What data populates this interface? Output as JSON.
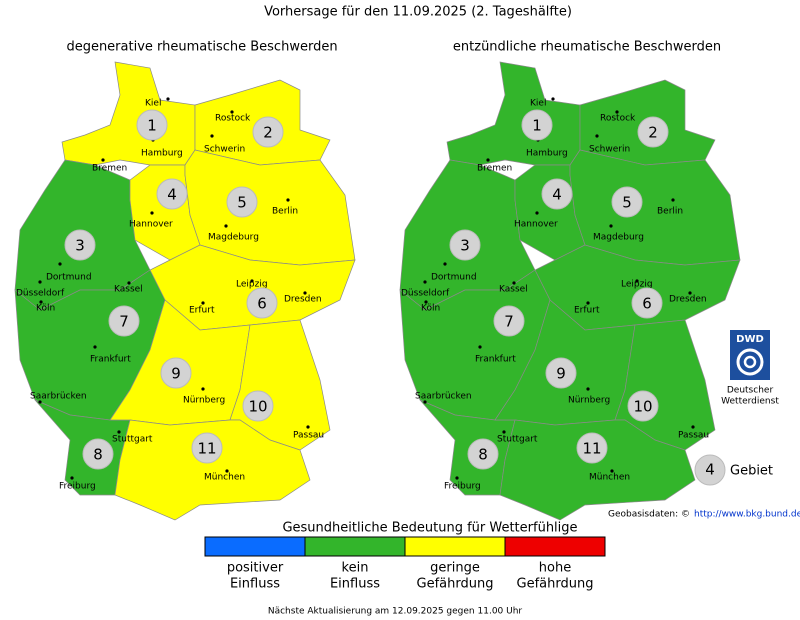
{
  "title": "Vorhersage für den 11.09.2025 (2. Tageshälfte)",
  "maps": [
    {
      "title": "degenerative rheumatische Beschwerden",
      "regions": [
        {
          "label": "1",
          "color": "#ffff00"
        },
        {
          "label": "2",
          "color": "#ffff00"
        },
        {
          "label": "3",
          "color": "#33b52b"
        },
        {
          "label": "4",
          "color": "#ffff00"
        },
        {
          "label": "5",
          "color": "#ffff00"
        },
        {
          "label": "6",
          "color": "#ffff00"
        },
        {
          "label": "7",
          "color": "#33b52b"
        },
        {
          "label": "8",
          "color": "#33b52b"
        },
        {
          "label": "9",
          "color": "#ffff00"
        },
        {
          "label": "10",
          "color": "#ffff00"
        },
        {
          "label": "11",
          "color": "#ffff00"
        }
      ]
    },
    {
      "title": "entzündliche rheumatische Beschwerden",
      "regions": [
        {
          "label": "1",
          "color": "#33b52b"
        },
        {
          "label": "2",
          "color": "#33b52b"
        },
        {
          "label": "3",
          "color": "#33b52b"
        },
        {
          "label": "4",
          "color": "#33b52b"
        },
        {
          "label": "5",
          "color": "#33b52b"
        },
        {
          "label": "6",
          "color": "#33b52b"
        },
        {
          "label": "7",
          "color": "#33b52b"
        },
        {
          "label": "8",
          "color": "#33b52b"
        },
        {
          "label": "9",
          "color": "#33b52b"
        },
        {
          "label": "10",
          "color": "#33b52b"
        },
        {
          "label": "11",
          "color": "#33b52b"
        }
      ]
    }
  ],
  "cities": [
    "Kiel",
    "Rostock",
    "Hamburg",
    "Schwerin",
    "Bremen",
    "Hannover",
    "Berlin",
    "Magdeburg",
    "Dortmund",
    "Düsseldorf",
    "Kassel",
    "Köln",
    "Leipzig",
    "Dresden",
    "Erfurt",
    "Frankfurt",
    "Saarbrücken",
    "Nürnberg",
    "Stuttgart",
    "Passau",
    "München",
    "Freiburg"
  ],
  "legend": {
    "title": "Gesundheitliche Bedeutung für Wetterfühlige",
    "items": [
      {
        "color": "#0a6cff",
        "lines": [
          "positiver",
          "Einfluss"
        ]
      },
      {
        "color": "#33b52b",
        "lines": [
          "kein",
          "Einfluss"
        ]
      },
      {
        "color": "#ffff00",
        "lines": [
          "geringe",
          "Gefährdung"
        ]
      },
      {
        "color": "#ee0000",
        "lines": [
          "hohe",
          "Gefährdung"
        ]
      }
    ]
  },
  "key": {
    "number": "4",
    "label": "Gebiet"
  },
  "logo": {
    "abbr": "DWD",
    "lines": [
      "Deutscher",
      "Wetterdienst"
    ]
  },
  "source": {
    "label": "Geobasisdaten: ©",
    "link": "http://www.bkg.bund.de"
  },
  "footer": "Nächste Aktualisierung am 12.09.2025 gegen 11.00 Uhr"
}
